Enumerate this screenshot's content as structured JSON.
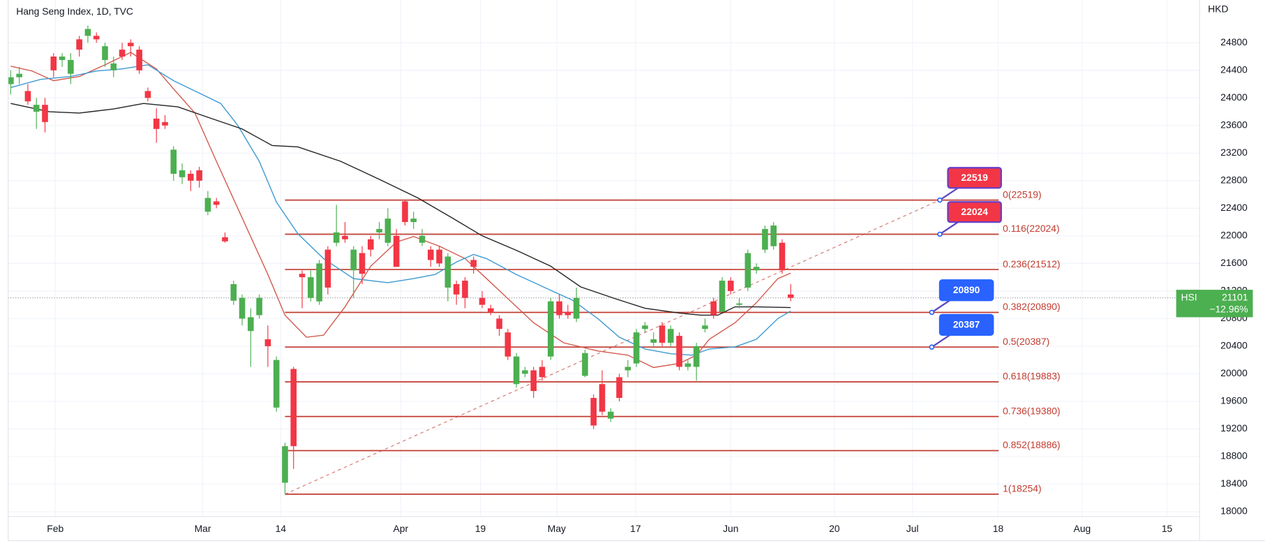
{
  "chart_data": {
    "type": "candlestick",
    "title": "Hang Seng Index, 1D, TVC",
    "currency": "HKD",
    "up_color": "#4caf50",
    "down_color": "#f23645",
    "grid": true,
    "ylim": [
      17930,
      25420
    ],
    "yticks": [
      18000,
      18400,
      18800,
      19200,
      19600,
      20000,
      20400,
      20800,
      21200,
      21600,
      22000,
      22400,
      22800,
      23200,
      23600,
      24000,
      24400,
      24800
    ],
    "xlim": [
      -0.3,
      138.7
    ],
    "xticks": [
      {
        "value": 5.2,
        "label": "Feb"
      },
      {
        "value": 22.4,
        "label": "Mar"
      },
      {
        "value": 31.5,
        "label": "14"
      },
      {
        "value": 45.5,
        "label": "Apr"
      },
      {
        "value": 54.8,
        "label": "19"
      },
      {
        "value": 63.7,
        "label": "May"
      },
      {
        "value": 72.9,
        "label": "17"
      },
      {
        "value": 84,
        "label": "Jun"
      },
      {
        "value": 96.1,
        "label": "20"
      },
      {
        "value": 105.2,
        "label": "Jul"
      },
      {
        "value": 115.2,
        "label": "18"
      },
      {
        "value": 125,
        "label": "Aug"
      },
      {
        "value": 134.9,
        "label": "15"
      }
    ],
    "open": [
      24200,
      24300,
      24100,
      23800,
      23900,
      24600,
      24550,
      24350,
      24850,
      24900,
      24900,
      24550,
      24400,
      24700,
      24800,
      24700,
      24100,
      23700,
      23650,
      22900,
      22850,
      22900,
      22950,
      22350,
      22500,
      21980,
      21060,
      20800,
      20620,
      20850,
      20500,
      19510,
      18420,
      20070,
      21450,
      21100,
      21050,
      21800,
      21900,
      22000,
      21500,
      21750,
      21950,
      22050,
      21900,
      22000,
      22500,
      22200,
      21900,
      21800,
      21800,
      21250,
      21300,
      21350,
      21650,
      21100,
      20950,
      20800,
      20600,
      19850,
      20000,
      20050,
      20100,
      20250,
      21050,
      20900,
      20800,
      19970,
      19650,
      19850,
      19350,
      19950,
      20050,
      20150,
      20650,
      20450,
      20700,
      20450,
      20550,
      20100,
      20100,
      20650,
      21050,
      20900,
      21350,
      21000,
      21250,
      21500,
      21800,
      21850,
      21900,
      21150
    ],
    "high": [
      24400,
      24450,
      24200,
      24000,
      24000,
      24650,
      24650,
      24650,
      24900,
      25050,
      24950,
      24800,
      24600,
      24800,
      24850,
      24750,
      24150,
      23850,
      23750,
      23300,
      23050,
      22950,
      23000,
      22650,
      22550,
      22050,
      21350,
      21150,
      20950,
      21150,
      20700,
      20250,
      19000,
      20100,
      21500,
      21500,
      21650,
      21850,
      22450,
      22200,
      21850,
      21850,
      22000,
      22200,
      22400,
      22100,
      22519,
      22350,
      22100,
      21850,
      21850,
      21750,
      21350,
      21400,
      21700,
      21200,
      21000,
      20850,
      20650,
      20300,
      20100,
      20100,
      20200,
      21100,
      21150,
      21000,
      21250,
      20350,
      19700,
      20050,
      19500,
      20000,
      20200,
      20650,
      20750,
      20600,
      20750,
      20700,
      20600,
      20200,
      20450,
      20800,
      21100,
      21400,
      21400,
      21100,
      21800,
      21600,
      22150,
      22200,
      21950,
      21300
    ],
    "low": [
      24050,
      24200,
      23900,
      23550,
      23500,
      24300,
      24450,
      24200,
      24600,
      24800,
      24800,
      24450,
      24300,
      24550,
      24600,
      24350,
      23950,
      23350,
      23550,
      22800,
      22750,
      22650,
      22700,
      22300,
      22400,
      21900,
      21000,
      20700,
      20100,
      20800,
      20100,
      19450,
      18254,
      18620,
      20950,
      21050,
      21000,
      21150,
      21850,
      21900,
      21100,
      21300,
      21700,
      21950,
      21850,
      21550,
      22150,
      22100,
      21850,
      21550,
      21550,
      21050,
      21000,
      20950,
      21450,
      20950,
      20850,
      20550,
      20200,
      19800,
      19950,
      19650,
      19900,
      20200,
      20800,
      20800,
      20750,
      19950,
      19200,
      19400,
      19300,
      19600,
      19950,
      20100,
      20600,
      20400,
      20400,
      20400,
      20050,
      20050,
      19900,
      20600,
      20800,
      20900,
      21150,
      20950,
      21200,
      21450,
      21750,
      21800,
      21450,
      21050
    ],
    "close": [
      24300,
      24350,
      23950,
      23900,
      23650,
      24400,
      24600,
      24550,
      24700,
      25000,
      24850,
      24750,
      24500,
      24600,
      24750,
      24400,
      24000,
      23550,
      23600,
      23250,
      22950,
      22800,
      22800,
      22550,
      22450,
      21920,
      21300,
      21100,
      20820,
      21100,
      20400,
      20200,
      18950,
      18950,
      21400,
      21400,
      21600,
      21250,
      22050,
      21950,
      21800,
      21450,
      21800,
      22100,
      22250,
      21550,
      22200,
      22250,
      22000,
      21650,
      21600,
      21700,
      21150,
      21100,
      21550,
      21000,
      20900,
      20650,
      20250,
      20250,
      20050,
      19750,
      19950,
      21050,
      20850,
      20850,
      21100,
      20300,
      19250,
      19450,
      19450,
      19650,
      20100,
      20600,
      20700,
      20500,
      20450,
      20650,
      20100,
      20150,
      20400,
      20700,
      20850,
      21350,
      21200,
      21020,
      21750,
      21550,
      22100,
      22150,
      21500,
      21101
    ],
    "series": [
      {
        "color": "#d2594c",
        "x": [
          0,
          2.5,
          5,
          8,
          11,
          14,
          17,
          19,
          21.5,
          24,
          27,
          30,
          32,
          34.5,
          36.5,
          39,
          42,
          45,
          47,
          50,
          53,
          55,
          58,
          61,
          64.5,
          68.5,
          72,
          75,
          78,
          80,
          81.5,
          84.5,
          87,
          89.5,
          91
        ],
        "values": [
          24460,
          24390,
          24250,
          24310,
          24480,
          24660,
          24420,
          24130,
          23780,
          23080,
          22260,
          21440,
          20850,
          20530,
          20560,
          20970,
          21560,
          21910,
          21990,
          21850,
          21670,
          21440,
          21090,
          20740,
          20450,
          20330,
          20270,
          20090,
          20150,
          20270,
          20500,
          20740,
          21030,
          21380,
          21460
        ]
      },
      {
        "color": "#3d9ad1",
        "x": [
          0,
          3.5,
          7,
          10,
          13,
          16,
          19,
          22,
          24.5,
          26.5,
          29,
          31,
          33.5,
          36.5,
          40,
          44,
          47,
          49.5,
          52,
          54,
          55.5,
          59,
          63,
          65.5,
          68.5,
          71,
          74,
          77,
          79.5,
          81.5,
          84.5,
          87,
          89.5,
          91
        ],
        "values": [
          24150,
          24270,
          24310,
          24390,
          24420,
          24480,
          24250,
          24070,
          23920,
          23600,
          23080,
          22490,
          22030,
          21670,
          21380,
          21320,
          21380,
          21440,
          21620,
          21730,
          21670,
          21440,
          21210,
          21070,
          20800,
          20530,
          20360,
          20290,
          20270,
          20360,
          20390,
          20500,
          20800,
          20910
        ]
      },
      {
        "color": "#222222",
        "x": [
          0,
          4.5,
          8,
          12,
          15.5,
          19.5,
          23,
          27,
          30.5,
          33.5,
          38.5,
          43,
          47.5,
          51.5,
          55,
          59,
          63,
          66.5,
          70.5,
          74,
          78,
          80.5,
          82.5,
          84.5,
          87,
          91
        ],
        "values": [
          23920,
          23800,
          23780,
          23840,
          23920,
          23870,
          23720,
          23550,
          23310,
          23290,
          23080,
          22820,
          22550,
          22260,
          22000,
          21790,
          21560,
          21260,
          21090,
          20950,
          20880,
          20850,
          20850,
          20970,
          20970,
          20960
        ]
      }
    ],
    "fib_color": "#c23b30",
    "fib_levels": [
      {
        "value": 22519,
        "label": "0(22519)"
      },
      {
        "value": 22024,
        "label": "0.116(22024)"
      },
      {
        "value": 21512,
        "label": "0.236(21512)"
      },
      {
        "value": 20890,
        "label": "0.382(20890)"
      },
      {
        "value": 20387,
        "label": "0.5(20387)"
      },
      {
        "value": 19883,
        "label": "0.618(19883)"
      },
      {
        "value": 19380,
        "label": "0.736(19380)"
      },
      {
        "value": 18886,
        "label": "0.852(18886)"
      },
      {
        "value": 18254,
        "label": "1(18254)"
      }
    ],
    "alerts": [
      {
        "value": 22519,
        "color": "#f23645"
      },
      {
        "value": 22024,
        "color": "#f23645"
      },
      {
        "value": 20890,
        "color": "#2962ff"
      },
      {
        "value": 20387,
        "color": "#2962ff"
      }
    ],
    "last": {
      "symbol": "HSI",
      "price": 21101,
      "change": {
        "value": -12.96,
        "label": "−12.96%"
      },
      "color": "#4caf50"
    }
  }
}
